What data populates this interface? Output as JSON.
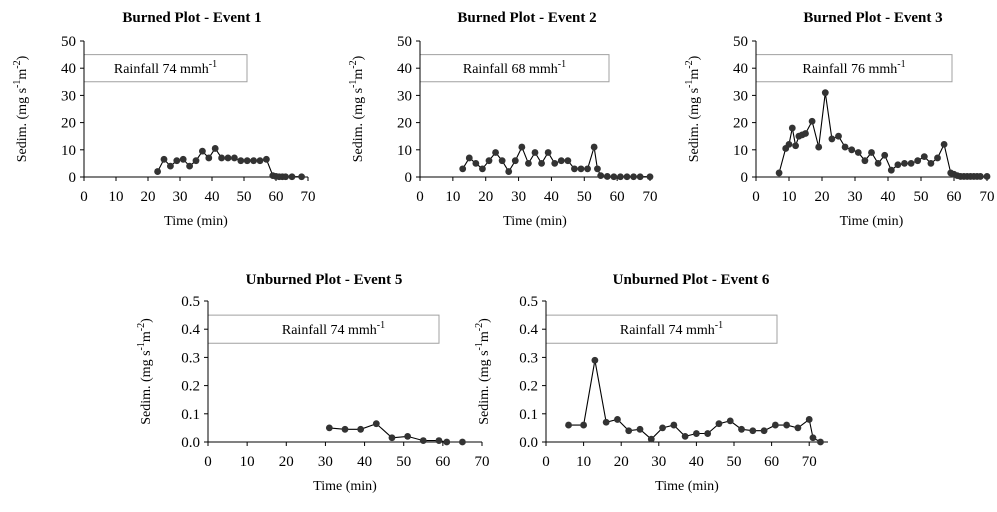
{
  "chart_data": [
    {
      "type": "line",
      "title": "Burned Plot - Event 1",
      "xlabel": "Time (min)",
      "ylabel": "Sedim. (mg s-1m-2)",
      "ylabel_parts": [
        "Sedim. (mg s",
        "-1",
        "m",
        "-2",
        ")"
      ],
      "annotation": "Rainfall 74 mmh-1",
      "annotation_parts": [
        "Rainfall 74 mmh",
        "-1"
      ],
      "xlim": [
        0,
        70
      ],
      "ylim": [
        0,
        50
      ],
      "xticks": [
        0,
        10,
        20,
        30,
        40,
        50,
        60,
        70
      ],
      "yticks": [
        0,
        10,
        20,
        30,
        40,
        50
      ],
      "ytick_labels": [
        "0",
        "10",
        "20",
        "30",
        "40",
        "50"
      ],
      "grid": false,
      "x": [
        23,
        25,
        27,
        29,
        31,
        33,
        35,
        37,
        39,
        41,
        43,
        45,
        47,
        49,
        51,
        53,
        55,
        57,
        59,
        60,
        61,
        62,
        63,
        65,
        68
      ],
      "y": [
        2.0,
        6.5,
        4.0,
        6.0,
        6.5,
        4.0,
        6.0,
        9.5,
        7.0,
        10.5,
        7.0,
        7.0,
        7.0,
        6.0,
        6.0,
        6.0,
        6.0,
        6.5,
        0.5,
        0.2,
        0.1,
        0.1,
        0.1,
        0.1,
        0.1
      ]
    },
    {
      "type": "line",
      "title": "Burned Plot - Event 2",
      "xlabel": "Time (min)",
      "ylabel": "Sedim. (mg s-1m-2)",
      "ylabel_parts": [
        "Sedim. (mg s",
        "-1",
        "m",
        "-2",
        ")"
      ],
      "annotation": "Rainfall 68 mmh-1",
      "annotation_parts": [
        "Rainfall 68 mmh",
        "-1"
      ],
      "xlim": [
        0,
        70
      ],
      "ylim": [
        0,
        50
      ],
      "xticks": [
        0,
        10,
        20,
        30,
        40,
        50,
        60,
        70
      ],
      "yticks": [
        0,
        10,
        20,
        30,
        40,
        50
      ],
      "ytick_labels": [
        "0",
        "10",
        "20",
        "30",
        "40",
        "50"
      ],
      "grid": false,
      "x": [
        13,
        15,
        17,
        19,
        21,
        23,
        25,
        27,
        29,
        31,
        33,
        35,
        37,
        39,
        41,
        43,
        45,
        47,
        49,
        51,
        53,
        54,
        55,
        57,
        59,
        61,
        63,
        65,
        67,
        70
      ],
      "y": [
        3.0,
        7.0,
        5.0,
        3.0,
        6.0,
        9.0,
        6.0,
        2.0,
        6.0,
        11.0,
        5.0,
        9.0,
        5.0,
        9.0,
        5.0,
        6.0,
        6.0,
        3.0,
        3.0,
        3.0,
        11.0,
        3.0,
        0.5,
        0.2,
        0.1,
        0.1,
        0.1,
        0.1,
        0.1,
        0.1
      ]
    },
    {
      "type": "line",
      "title": "Burned Plot - Event 3",
      "xlabel": "Time (min)",
      "ylabel": "Sedim. (mg s-1m-2)",
      "ylabel_parts": [
        "Sedim. (mg s",
        "-1",
        "m",
        "-2",
        ")"
      ],
      "annotation": "Rainfall 76 mmh-1",
      "annotation_parts": [
        "Rainfall 76 mmh",
        "-1"
      ],
      "xlim": [
        0,
        70
      ],
      "ylim": [
        0,
        50
      ],
      "xticks": [
        0,
        10,
        20,
        30,
        40,
        50,
        60,
        70
      ],
      "yticks": [
        0,
        10,
        20,
        30,
        40,
        50
      ],
      "ytick_labels": [
        "0",
        "10",
        "20",
        "30",
        "40",
        "50"
      ],
      "grid": false,
      "x": [
        7,
        9,
        10,
        11,
        12,
        13,
        14,
        15,
        17,
        19,
        21,
        23,
        25,
        27,
        29,
        31,
        33,
        35,
        37,
        39,
        41,
        43,
        45,
        47,
        49,
        51,
        53,
        55,
        57,
        59,
        60,
        61,
        62,
        63,
        64,
        65,
        66,
        67,
        68,
        70
      ],
      "y": [
        1.5,
        10.5,
        12.0,
        18.0,
        11.5,
        15.0,
        15.5,
        16.0,
        20.5,
        11.0,
        31.0,
        14.0,
        15.0,
        11.0,
        10.0,
        9.0,
        6.0,
        9.0,
        5.0,
        8.0,
        2.5,
        4.5,
        5.0,
        5.0,
        6.0,
        7.5,
        5.0,
        7.0,
        12.0,
        1.5,
        1.0,
        0.5,
        0.2,
        0.2,
        0.2,
        0.2,
        0.2,
        0.2,
        0.2,
        0.2
      ]
    },
    {
      "type": "line",
      "title": "Unburned Plot - Event 5",
      "xlabel": "Time (min)",
      "ylabel": "Sedim. (mg s-1m-2)",
      "ylabel_parts": [
        "Sedim. (mg s",
        "-1",
        "m",
        "-2",
        ")"
      ],
      "annotation": "Rainfall 74 mmh-1",
      "annotation_parts": [
        "Rainfall 74 mmh",
        "-1"
      ],
      "xlim": [
        0,
        70
      ],
      "ylim": [
        0,
        0.5
      ],
      "xticks": [
        0,
        10,
        20,
        30,
        40,
        50,
        60,
        70
      ],
      "yticks": [
        0,
        0.1,
        0.2,
        0.3,
        0.4,
        0.5
      ],
      "ytick_labels": [
        "0.0",
        "0.1",
        "0.2",
        "0.3",
        "0.4",
        "0.5"
      ],
      "grid": false,
      "x": [
        31,
        35,
        39,
        43,
        47,
        51,
        55,
        59,
        61,
        65
      ],
      "y": [
        0.05,
        0.045,
        0.045,
        0.065,
        0.015,
        0.02,
        0.005,
        0.005,
        0.0,
        0.0
      ]
    },
    {
      "type": "line",
      "title": "Unburned Plot - Event 6",
      "xlabel": "Time (min)",
      "ylabel": "Sedim. (mg s-1m-2)",
      "ylabel_parts": [
        "Sedim. (mg s",
        "-1",
        "m",
        "-2",
        ")"
      ],
      "annotation": "Rainfall 74 mmh-1",
      "annotation_parts": [
        "Rainfall 74 mmh",
        "-1"
      ],
      "xlim": [
        0,
        75
      ],
      "ylim": [
        0,
        0.5
      ],
      "xticks": [
        0,
        10,
        20,
        30,
        40,
        50,
        60,
        70
      ],
      "yticks": [
        0,
        0.1,
        0.2,
        0.3,
        0.4,
        0.5
      ],
      "ytick_labels": [
        "0.0",
        "0.1",
        "0.2",
        "0.3",
        "0.4",
        "0.5"
      ],
      "grid": false,
      "x": [
        6,
        10,
        13,
        16,
        19,
        22,
        25,
        28,
        31,
        34,
        37,
        40,
        43,
        46,
        49,
        52,
        55,
        58,
        61,
        64,
        67,
        70,
        71,
        73
      ],
      "y": [
        0.06,
        0.06,
        0.29,
        0.07,
        0.08,
        0.04,
        0.045,
        0.01,
        0.05,
        0.06,
        0.02,
        0.03,
        0.03,
        0.065,
        0.075,
        0.045,
        0.04,
        0.04,
        0.06,
        0.06,
        0.05,
        0.08,
        0.015,
        0.0
      ]
    }
  ]
}
